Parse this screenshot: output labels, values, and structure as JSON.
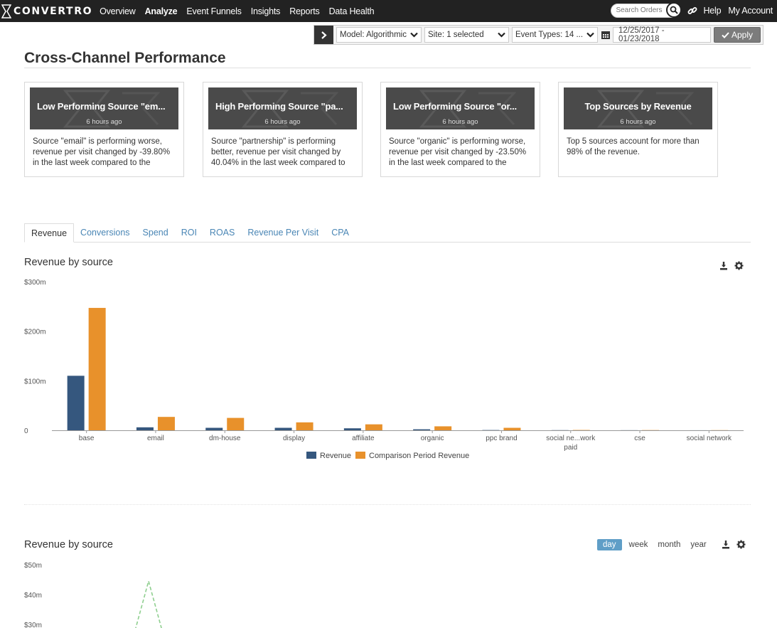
{
  "brand": {
    "name": "CONVERTRO"
  },
  "nav": {
    "items": [
      {
        "label": "Overview",
        "active": false
      },
      {
        "label": "Analyze",
        "active": true
      },
      {
        "label": "Event Funnels",
        "active": false
      },
      {
        "label": "Insights",
        "active": false
      },
      {
        "label": "Reports",
        "active": false
      },
      {
        "label": "Data Health",
        "active": false
      }
    ],
    "search_placeholder": "Search Orders",
    "help": "Help",
    "account": "My Account"
  },
  "filters": {
    "model": "Model: Algorithmic",
    "site": "Site: 1 selected",
    "event_types": "Event Types: 14 ...",
    "date_range": "12/25/2017 - 01/23/2018",
    "apply": "Apply"
  },
  "page_title": "Cross-Channel Performance",
  "cards": [
    {
      "title": "Low Performing Source \"em...",
      "time": "6 hours ago",
      "body": "Source \"email\" is performing worse, revenue per visit changed by -39.80% in the last week compared to the equivalent period in the previous"
    },
    {
      "title": "High Performing Source \"pa...",
      "time": "6 hours ago",
      "body": "Source \"partnership\" is performing better, revenue per visit changed by 40.04% in the last week compared to the equivalent period in the previous"
    },
    {
      "title": "Low Performing Source \"or...",
      "time": "6 hours ago",
      "body": "Source \"organic\" is performing worse, revenue per visit changed by -23.50% in the last week compared to the equivalent period in the previous"
    },
    {
      "title": "Top Sources by Revenue",
      "time": "6 hours ago",
      "body": "Top 5 sources account for more than 98% of the revenue."
    }
  ],
  "tabs": [
    {
      "label": "Revenue",
      "active": true
    },
    {
      "label": "Conversions",
      "active": false
    },
    {
      "label": "Spend",
      "active": false
    },
    {
      "label": "ROI",
      "active": false
    },
    {
      "label": "ROAS",
      "active": false
    },
    {
      "label": "Revenue Per Visit",
      "active": false
    },
    {
      "label": "CPA",
      "active": false
    }
  ],
  "colors": {
    "revenue": "#35577e",
    "comparison": "#e8912b",
    "line": "#8fcf8f",
    "accent": "#5f9ec7"
  },
  "chart_data": [
    {
      "type": "bar",
      "title": "Revenue by source",
      "categories": [
        "base",
        "email",
        "dm-house",
        "display",
        "affiliate",
        "organic",
        "ppc brand",
        "social ne...work paid",
        "cse",
        "social network"
      ],
      "category_lines": [
        [
          "base"
        ],
        [
          "email"
        ],
        [
          "dm-house"
        ],
        [
          "display"
        ],
        [
          "affiliate"
        ],
        [
          "organic"
        ],
        [
          "ppc brand"
        ],
        [
          "social ne...work",
          "paid"
        ],
        [
          "cse"
        ],
        [
          "social network"
        ]
      ],
      "series": [
        {
          "name": "Revenue",
          "values": [
            110,
            6,
            5,
            5,
            4,
            2,
            0.5,
            0.3,
            0.2,
            0.1
          ]
        },
        {
          "name": "Comparison Period Revenue",
          "values": [
            247,
            27,
            25,
            16,
            12,
            8,
            5,
            0.6,
            0.4,
            0.3
          ]
        }
      ],
      "ylim": [
        0,
        300
      ],
      "yticks": [
        0,
        100,
        200,
        300
      ],
      "ytick_labels": [
        "0",
        "$100m",
        "$200m",
        "$300m"
      ],
      "legend": "bottom-center"
    },
    {
      "type": "line",
      "title": "Revenue by source",
      "ytick_labels": [
        "$50m",
        "$40m",
        "$30m"
      ],
      "yticks": [
        50,
        40,
        30
      ],
      "series": [
        {
          "name": "",
          "style": "dashed",
          "x": [
            1,
            2,
            3
          ],
          "values": [
            28,
            44.5,
            28
          ]
        }
      ],
      "granularity": [
        "day",
        "week",
        "month",
        "year"
      ],
      "granularity_selected": "day"
    }
  ]
}
